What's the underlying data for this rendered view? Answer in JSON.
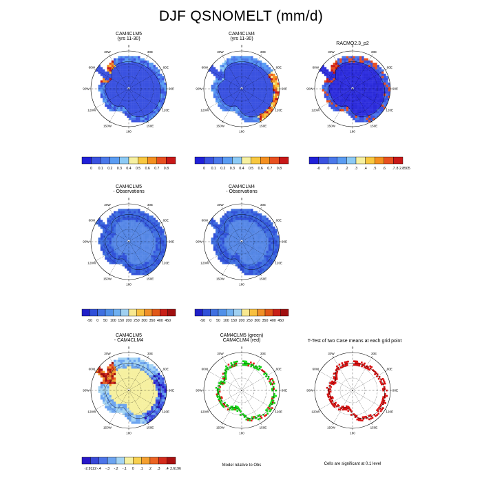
{
  "title": "DJF QSNOMELT (mm/d)",
  "lon_labels": [
    "0",
    "30E",
    "60E",
    "90E",
    "120E",
    "150E",
    "180",
    "150W",
    "120W",
    "90W",
    "60W",
    "30W"
  ],
  "panels": [
    {
      "id": "p1",
      "title1": "CAM4CLM5",
      "title2": "(yrs 11-30)",
      "palette": "abs",
      "mode": "abs"
    },
    {
      "id": "p2",
      "title1": "CAM4CLM4",
      "title2": "(yrs 11-30)",
      "palette": "abs",
      "mode": "abs2"
    },
    {
      "id": "p3",
      "title1": "RACMO2.3_p2",
      "title2": "",
      "palette": "abs",
      "mode": "obs"
    },
    {
      "id": "p4",
      "title1": "CAM4CLM5",
      "title2": "- Observations",
      "palette": "bias",
      "mode": "bias"
    },
    {
      "id": "p5",
      "title1": "CAM4CLM4",
      "title2": "- Observations",
      "palette": "bias",
      "mode": "bias2"
    },
    {
      "id": "p6",
      "title1": "CAM4CLM5",
      "title2": "- CAM4CLM4",
      "palette": "diff",
      "mode": "diff"
    },
    {
      "id": "p7",
      "title1": "CAM4CLM5 (green)",
      "title2": "CAM4CLM4 (red)",
      "palette": "none",
      "mode": "rel"
    },
    {
      "id": "p8",
      "title1": "T-Test of two Case means at each grid point",
      "title2": "",
      "palette": "none",
      "mode": "ttest"
    }
  ],
  "colorbars": [
    {
      "id": "cb1",
      "labels": [
        "0",
        "0.1",
        "0.2",
        "0.3",
        "0.4",
        "0.5",
        "0.6",
        "0.7",
        "0.8"
      ]
    },
    {
      "id": "cb2",
      "labels": [
        "0",
        "0.1",
        "0.2",
        "0.3",
        "0.4",
        "0.5",
        "0.6",
        "0.7",
        "0.8"
      ]
    },
    {
      "id": "cb3",
      "labels": [
        "-0",
        ".0",
        ".1",
        ".2",
        ".3",
        ".4",
        ".5",
        ".6",
        ".7",
        ".8 2.8505"
      ]
    },
    {
      "id": "cb4",
      "labels": [
        "-50",
        "0",
        "50",
        "100",
        "150",
        "200",
        "250",
        "300",
        "350",
        "400",
        "450"
      ]
    },
    {
      "id": "cb5",
      "labels": [
        "-50",
        "0",
        "50",
        "100",
        "150",
        "200",
        "250",
        "300",
        "350",
        "400",
        "450"
      ]
    },
    {
      "id": "cb6",
      "labels": [
        "-2.9122",
        "-.4",
        "-.3",
        "-.2",
        "-.1",
        "0",
        ".1",
        ".2",
        ".3",
        ".4",
        "2.6196"
      ]
    }
  ],
  "palettes": {
    "abs": [
      "#2020d8",
      "#3a52e0",
      "#4a78ea",
      "#5a9cf2",
      "#8ccaf5",
      "#f6f0a0",
      "#f8c840",
      "#f49020",
      "#e85020",
      "#c81818"
    ],
    "bias": [
      "#2020c8",
      "#3050d8",
      "#4070e0",
      "#5090e8",
      "#70b0f0",
      "#a0d0f0",
      "#f8e890",
      "#f8c040",
      "#f09028",
      "#e05818",
      "#c82018",
      "#a01010"
    ],
    "diff": [
      "#2818c8",
      "#3848d8",
      "#4c74e8",
      "#6ca4f0",
      "#a4d4f4",
      "#f6f0a0",
      "#f8d050",
      "#f4a030",
      "#ec6424",
      "#d42c1c",
      "#a81010"
    ]
  },
  "footnotes": {
    "rel": "Model relative to Obs",
    "ttest": "Cells are significant at 0.1 level"
  }
}
